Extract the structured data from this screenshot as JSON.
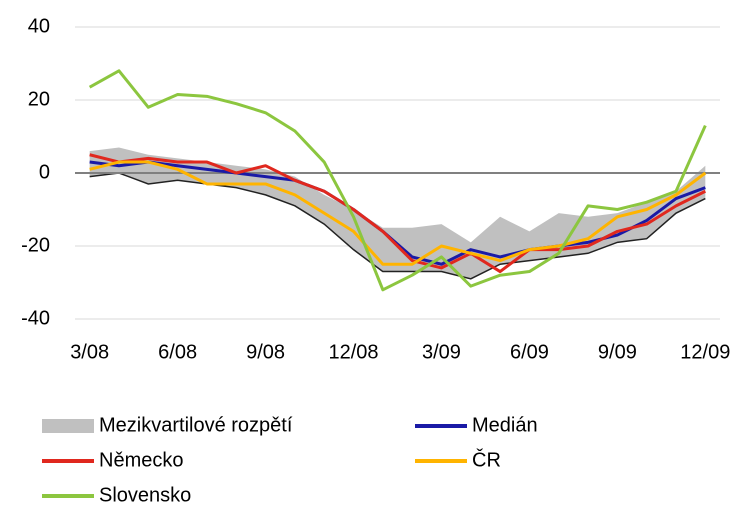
{
  "chart_data": {
    "type": "line",
    "categories": [
      "3/08",
      null,
      null,
      "6/08",
      null,
      null,
      "9/08",
      null,
      null,
      "12/08",
      null,
      null,
      "3/09",
      null,
      null,
      "6/09",
      null,
      null,
      "9/09",
      null,
      null,
      "12/09"
    ],
    "band": {
      "name": "Mezikvartilové rozpětí",
      "color": "#c0c0c0",
      "low": [
        -1,
        0,
        -3,
        -2,
        -3,
        -4,
        -6,
        -9,
        -14,
        -21,
        -27,
        -27,
        -27,
        -29,
        -25,
        -24,
        -23,
        -22,
        -19,
        -18,
        -11,
        -7
      ],
      "high": [
        6,
        7,
        5,
        4,
        3,
        2,
        1,
        -1,
        -6,
        -10,
        -15,
        -15,
        -14,
        -19,
        -12,
        -16,
        -11,
        -12,
        -11,
        -8,
        -5,
        2
      ]
    },
    "series": [
      {
        "name": "Medián",
        "color": "#1a1aa6",
        "values": [
          3,
          2,
          3,
          2,
          1,
          0,
          -1,
          -2,
          -5,
          -10,
          -16,
          -23,
          -25,
          -21,
          -23,
          -21,
          -20,
          -19,
          -17,
          -13,
          -7,
          -4
        ]
      },
      {
        "name": "Německo",
        "color": "#e0281e",
        "values": [
          5,
          3,
          4,
          3,
          3,
          0,
          2,
          -2,
          -5,
          -10,
          -16,
          -24,
          -26,
          -22,
          -27,
          -21,
          -21,
          -20,
          -16,
          -14,
          -9,
          -5
        ]
      },
      {
        "name": "ČR",
        "color": "#ffb400",
        "values": [
          1,
          3,
          3,
          1,
          -3,
          -3,
          -3,
          -6,
          -11,
          -16,
          -25,
          -25,
          -20,
          -22,
          -24,
          -21,
          -20,
          -18,
          -12,
          -10,
          -6,
          0
        ]
      },
      {
        "name": "Slovensko",
        "color": "#8cc63f",
        "values": [
          23.5,
          28,
          18,
          21.5,
          21,
          19,
          16.5,
          11.5,
          3,
          -12,
          -32,
          -28,
          -23,
          -31,
          -28,
          -27,
          -22,
          -9,
          -10,
          -8,
          -5,
          13
        ]
      }
    ],
    "ylim": [
      -40,
      40
    ],
    "yticks": [
      -40,
      -20,
      0,
      20,
      40
    ],
    "grid": true
  }
}
